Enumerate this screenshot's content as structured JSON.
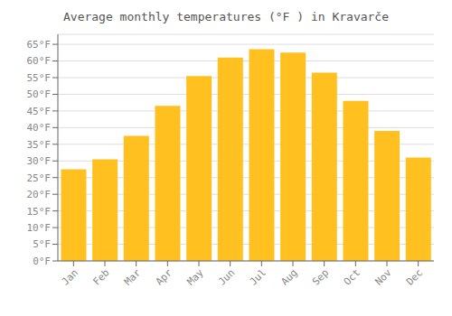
{
  "chart_data": {
    "type": "bar",
    "title": "Average monthly temperatures (°F ) in Kravarče",
    "categories": [
      "Jan",
      "Feb",
      "Mar",
      "Apr",
      "May",
      "Jun",
      "Jul",
      "Aug",
      "Sep",
      "Oct",
      "Nov",
      "Dec"
    ],
    "values": [
      27.5,
      30.5,
      37.5,
      46.5,
      55.5,
      61.0,
      63.5,
      62.5,
      56.5,
      48.0,
      39.0,
      31.0
    ],
    "color": "#FFC020",
    "ylim": [
      0,
      68
    ],
    "yticks": [
      {
        "value": 0,
        "label": "0°F"
      },
      {
        "value": 5,
        "label": "5°F"
      },
      {
        "value": 10,
        "label": "10°F"
      },
      {
        "value": 15,
        "label": "15°F"
      },
      {
        "value": 20,
        "label": "20°F"
      },
      {
        "value": 25,
        "label": "25°F"
      },
      {
        "value": 30,
        "label": "30°F"
      },
      {
        "value": 35,
        "label": "35°F"
      },
      {
        "value": 40,
        "label": "40°F"
      },
      {
        "value": 45,
        "label": "45°F"
      },
      {
        "value": 50,
        "label": "50°F"
      },
      {
        "value": 55,
        "label": "55°F"
      },
      {
        "value": 60,
        "label": "60°F"
      },
      {
        "value": 65,
        "label": "65°F"
      }
    ],
    "grid": true
  }
}
